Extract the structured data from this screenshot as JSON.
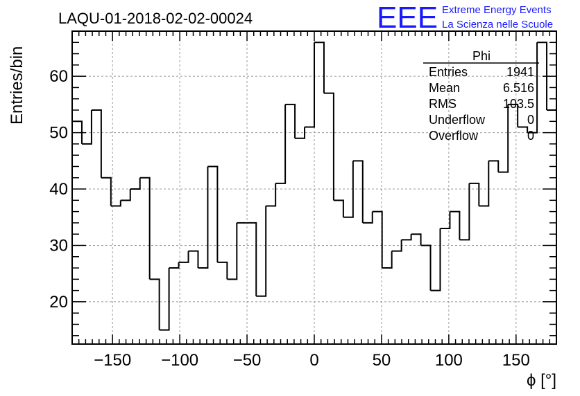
{
  "chart_data": {
    "type": "histogram",
    "title": "LAQU-01-2018-02-02-00024",
    "xlabel": "ϕ [°]",
    "ylabel": "Entries/bin",
    "xlim": [
      -180,
      180
    ],
    "ylim": [
      12.5,
      68
    ],
    "grid": true,
    "bin_edges": [
      -180,
      -172.8,
      -165.6,
      -158.4,
      -151.2,
      -144,
      -136.8,
      -129.6,
      -122.4,
      -115.2,
      -108,
      -100.8,
      -93.6,
      -86.4,
      -79.2,
      -72,
      -64.8,
      -57.6,
      -50.4,
      -43.2,
      -36,
      -28.8,
      -21.6,
      -14.4,
      -7.2,
      0,
      7.2,
      14.4,
      21.6,
      28.8,
      36,
      43.2,
      50.4,
      57.6,
      64.8,
      72,
      79.2,
      86.4,
      93.6,
      100.8,
      108,
      115.2,
      122.4,
      129.6,
      136.8,
      144,
      151.2,
      158.4,
      165.6,
      172.8,
      180
    ],
    "values": [
      52,
      48,
      54,
      42,
      37,
      38,
      40,
      42,
      24,
      15,
      26,
      27,
      29,
      26,
      44,
      27,
      24,
      34,
      34,
      21,
      37,
      41,
      55,
      49,
      51,
      66,
      57,
      38,
      35,
      45,
      34,
      36,
      26,
      29,
      31,
      32,
      30,
      22,
      33,
      36,
      31,
      41,
      37,
      45,
      43,
      55,
      51,
      50,
      66,
      54
    ],
    "xticks": [
      -150,
      -100,
      -50,
      0,
      50,
      100,
      150
    ],
    "yticks": [
      20,
      30,
      40,
      50,
      60
    ],
    "xtick_labels": [
      "−150",
      "−100",
      "−50",
      "0",
      "50",
      "100",
      "150"
    ],
    "ytick_labels": [
      "20",
      "30",
      "40",
      "50",
      "60"
    ],
    "stats_box": {
      "title": "Phi",
      "rows": [
        {
          "label": "Entries",
          "value": "1941"
        },
        {
          "label": "Mean",
          "value": "6.516"
        },
        {
          "label": "RMS",
          "value": "103.5"
        },
        {
          "label": "Underflow",
          "value": "0"
        },
        {
          "label": "Overflow",
          "value": "0"
        }
      ]
    }
  },
  "logo": {
    "mark": "EEE",
    "line1": "Extreme Energy Events",
    "line2": "La Scienza nelle Scuole",
    "color": "#1a1aff"
  },
  "colors": {
    "line": "#000000",
    "grid": "#9a9a9a"
  }
}
